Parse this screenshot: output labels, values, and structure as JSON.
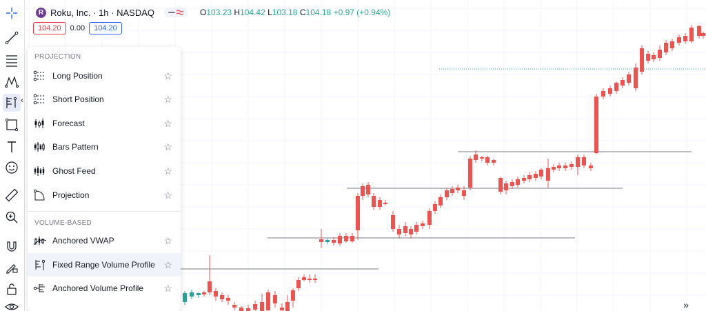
{
  "header": {
    "logo_letter": "R",
    "symbol": "Roku, Inc. · 1h · NASDAQ",
    "open_key": "O",
    "open": "103.23",
    "high_key": "H",
    "high": "104.42",
    "low_key": "L",
    "low": "103.18",
    "close_key": "C",
    "close": "104.18",
    "change": "+0.97 (+0.94%)"
  },
  "prices": {
    "sell": "104.20",
    "spread": "0.00",
    "buy": "104.20"
  },
  "menu": {
    "projection_header": "PROJECTION",
    "volume_header": "VOLUME-BASED",
    "items": [
      {
        "label": "Long Position",
        "icon": "long-position-icon"
      },
      {
        "label": "Short Position",
        "icon": "short-position-icon"
      },
      {
        "label": "Forecast",
        "icon": "forecast-icon"
      },
      {
        "label": "Bars Pattern",
        "icon": "bars-pattern-icon"
      },
      {
        "label": "Ghost Feed",
        "icon": "ghost-feed-icon"
      },
      {
        "label": "Projection",
        "icon": "projection-icon"
      },
      {
        "label": "Anchored VWAP",
        "icon": "anchored-vwap-icon"
      },
      {
        "label": "Fixed Range Volume Profile",
        "icon": "fixed-range-volume-profile-icon"
      },
      {
        "label": "Anchored Volume Profile",
        "icon": "anchored-volume-profile-icon"
      }
    ],
    "star": "☆"
  },
  "toolbar": {
    "collapse": "‹",
    "scroll_right": "»"
  },
  "colors": {
    "up": "#26a69a",
    "down": "#ef5350",
    "line": "#787b86",
    "accent": "#2962ff"
  }
}
